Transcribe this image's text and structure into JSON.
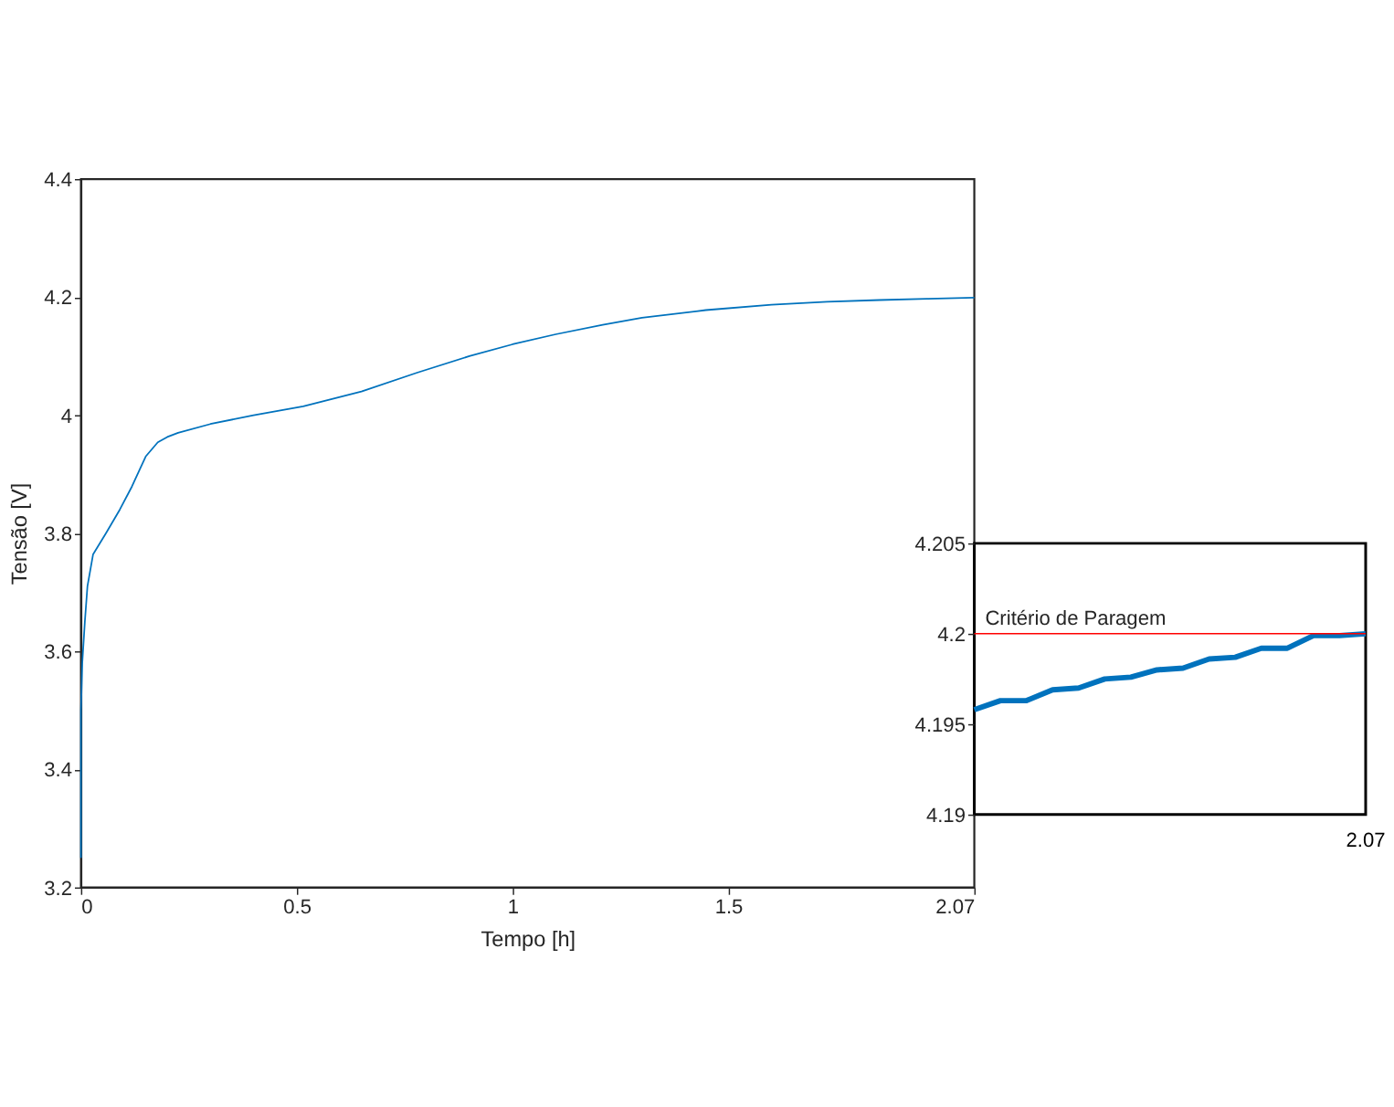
{
  "chart_data": [
    {
      "type": "line",
      "xlabel": "Tempo [h]",
      "ylabel": "Tensão [V]",
      "xlim": [
        0,
        2.07
      ],
      "ylim": [
        3.2,
        4.4
      ],
      "xticks": [
        0,
        0.5,
        1,
        1.5,
        2.07
      ],
      "yticks": [
        3.2,
        3.4,
        3.6,
        3.8,
        4,
        4.2,
        4.4
      ],
      "grid": false,
      "series": [
        {
          "color": "#0072bd",
          "x": [
            0,
            0,
            0.003,
            0.009,
            0.015,
            0.028,
            0.058,
            0.09,
            0.118,
            0.15,
            0.178,
            0.2,
            0.225,
            0.3,
            0.4,
            0.515,
            0.65,
            0.779,
            0.9,
            1.0,
            1.1,
            1.209,
            1.3,
            1.448,
            1.6,
            1.729,
            1.85,
            1.96,
            2.07
          ],
          "values": [
            3.25,
            3.5,
            3.58,
            3.65,
            3.71,
            3.764,
            3.8,
            3.84,
            3.879,
            3.93,
            3.954,
            3.963,
            3.97,
            3.985,
            4.0,
            4.015,
            4.04,
            4.072,
            4.1,
            4.12,
            4.137,
            4.153,
            4.165,
            4.178,
            4.187,
            4.192,
            4.195,
            4.197,
            4.199
          ]
        }
      ]
    },
    {
      "type": "line",
      "categories": [
        null,
        null,
        null,
        null,
        null,
        null,
        null,
        null,
        null,
        null,
        null,
        null,
        null,
        null,
        null,
        null
      ],
      "ylim": [
        4.19,
        4.205
      ],
      "yticks": [
        4.19,
        4.195,
        4.2,
        4.205
      ],
      "grid": false,
      "annotations": [
        "2.07"
      ],
      "series": [
        {
          "color": "#0072bd",
          "values": [
            4.1958,
            4.1963,
            4.1963,
            4.1969,
            4.197,
            4.1975,
            4.1976,
            4.198,
            4.1981,
            4.1986,
            4.1987,
            4.1992,
            4.1992,
            4.1999,
            4.1999,
            4.2
          ]
        }
      ],
      "ref_lines": [
        {
          "axis": "y",
          "value": 4.2,
          "label": "Critério de Paragem",
          "color": "#ff0000"
        }
      ]
    }
  ]
}
